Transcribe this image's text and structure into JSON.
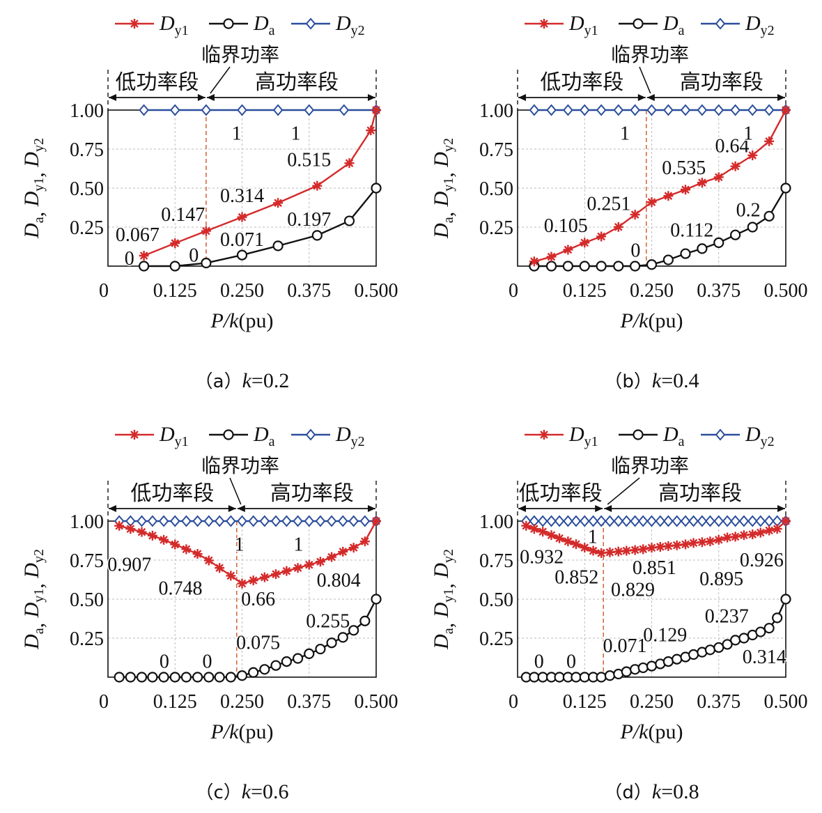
{
  "legend": [
    {
      "name": "D",
      "sub": "y1",
      "color": "#d42a2a",
      "marker": "star"
    },
    {
      "name": "D",
      "sub": "a",
      "color": "#111111",
      "marker": "circle"
    },
    {
      "name": "D",
      "sub": "y2",
      "color": "#2a4d9c",
      "marker": "diamond"
    }
  ],
  "labels": {
    "critical": "临界功率",
    "low": "低功率段",
    "high": "高功率段",
    "xlabel_italic": "P/k",
    "xlabel_unit": "(pu)",
    "ylabel_text": "D",
    "ylabel_subs": [
      "a",
      "y1",
      "y2"
    ],
    "ylabel_sep": ", "
  },
  "chart_data": [
    {
      "type": "line",
      "caption": "（a）k=0.2",
      "caption_prefix": "（a）",
      "caption_var": "k",
      "caption_value": "=0.2",
      "xlim": [
        0,
        0.5
      ],
      "ylim": [
        0,
        1
      ],
      "xticks": [
        0,
        0.125,
        0.25,
        0.375,
        0.5
      ],
      "xtick_labels": [
        "0",
        "0.125",
        "0.250",
        "0.375",
        "0.500"
      ],
      "yticks": [
        0.25,
        0.5,
        0.75,
        1.0
      ],
      "ytick_labels": [
        "0.25",
        "0.50",
        "0.75",
        "1.00"
      ],
      "grid": true,
      "critical_x": 0.183,
      "series": [
        {
          "key": "Dy1",
          "x": [
            0.067,
            0.125,
            0.183,
            0.25,
            0.317,
            0.39,
            0.45,
            0.49,
            0.5
          ],
          "y": [
            0.067,
            0.147,
            0.225,
            0.314,
            0.405,
            0.515,
            0.66,
            0.87,
            1.0
          ]
        },
        {
          "key": "Da",
          "x": [
            0.067,
            0.125,
            0.183,
            0.25,
            0.317,
            0.39,
            0.45,
            0.5
          ],
          "y": [
            0.0,
            0.0,
            0.02,
            0.071,
            0.13,
            0.197,
            0.29,
            0.5
          ]
        },
        {
          "key": "Dy2",
          "x": [
            0.067,
            0.125,
            0.183,
            0.25,
            0.317,
            0.375,
            0.44,
            0.5
          ],
          "y": [
            1,
            1,
            1,
            1,
            1,
            1,
            1,
            1
          ]
        }
      ],
      "annotations": [
        {
          "text": "0.067",
          "x": 0.055,
          "y": 0.2
        },
        {
          "text": "0.147",
          "x": 0.14,
          "y": 0.33
        },
        {
          "text": "0.314",
          "x": 0.25,
          "y": 0.45
        },
        {
          "text": "0.515",
          "x": 0.375,
          "y": 0.68
        },
        {
          "text": "0.071",
          "x": 0.25,
          "y": 0.17
        },
        {
          "text": "0.197",
          "x": 0.375,
          "y": 0.3
        },
        {
          "text": "0",
          "x": 0.04,
          "y": 0.05
        },
        {
          "text": "0",
          "x": 0.16,
          "y": 0.07
        },
        {
          "text": "1",
          "x": 0.24,
          "y": 0.85
        },
        {
          "text": "1",
          "x": 0.35,
          "y": 0.85
        }
      ]
    },
    {
      "type": "line",
      "caption": "（b）k=0.4",
      "caption_prefix": "（b）",
      "caption_var": "k",
      "caption_value": "=0.4",
      "xlim": [
        0,
        0.5
      ],
      "ylim": [
        0,
        1
      ],
      "xticks": [
        0,
        0.125,
        0.25,
        0.375,
        0.5
      ],
      "xtick_labels": [
        "0",
        "0.125",
        "0.250",
        "0.375",
        "0.500"
      ],
      "yticks": [
        0.25,
        0.5,
        0.75,
        1.0
      ],
      "ytick_labels": [
        "0.25",
        "0.50",
        "0.75",
        "1.00"
      ],
      "grid": true,
      "critical_x": 0.24,
      "series": [
        {
          "key": "Dy1",
          "x": [
            0.031,
            0.063,
            0.094,
            0.125,
            0.156,
            0.188,
            0.219,
            0.25,
            0.281,
            0.313,
            0.344,
            0.375,
            0.406,
            0.438,
            0.469,
            0.5
          ],
          "y": [
            0.03,
            0.06,
            0.105,
            0.15,
            0.19,
            0.251,
            0.33,
            0.41,
            0.45,
            0.49,
            0.535,
            0.57,
            0.64,
            0.71,
            0.8,
            1.0
          ]
        },
        {
          "key": "Da",
          "x": [
            0.031,
            0.063,
            0.094,
            0.125,
            0.156,
            0.188,
            0.219,
            0.25,
            0.281,
            0.313,
            0.344,
            0.375,
            0.406,
            0.438,
            0.469,
            0.5
          ],
          "y": [
            0,
            0,
            0,
            0,
            0,
            0,
            0,
            0.01,
            0.04,
            0.08,
            0.112,
            0.15,
            0.2,
            0.25,
            0.32,
            0.5
          ]
        },
        {
          "key": "Dy2",
          "x": [
            0.031,
            0.063,
            0.094,
            0.125,
            0.156,
            0.188,
            0.219,
            0.25,
            0.281,
            0.313,
            0.344,
            0.375,
            0.406,
            0.438,
            0.469,
            0.5
          ],
          "y": [
            1,
            1,
            1,
            1,
            1,
            1,
            1,
            1,
            1,
            1,
            1,
            1,
            1,
            1,
            1,
            1
          ]
        }
      ],
      "annotations": [
        {
          "text": "0.105",
          "x": 0.09,
          "y": 0.26
        },
        {
          "text": "0.251",
          "x": 0.17,
          "y": 0.4
        },
        {
          "text": "0.535",
          "x": 0.31,
          "y": 0.63
        },
        {
          "text": "0.64",
          "x": 0.4,
          "y": 0.77
        },
        {
          "text": "0.112",
          "x": 0.325,
          "y": 0.23
        },
        {
          "text": "0.2",
          "x": 0.43,
          "y": 0.36
        },
        {
          "text": "0",
          "x": 0.22,
          "y": 0.1
        },
        {
          "text": "1",
          "x": 0.2,
          "y": 0.85
        },
        {
          "text": "1",
          "x": 0.43,
          "y": 0.85
        }
      ]
    },
    {
      "type": "line",
      "caption": "（c）k=0.6",
      "caption_prefix": "（c）",
      "caption_var": "k",
      "caption_value": "=0.6",
      "xlim": [
        0,
        0.5
      ],
      "ylim": [
        0,
        1
      ],
      "xticks": [
        0,
        0.125,
        0.25,
        0.375,
        0.5
      ],
      "xtick_labels": [
        "0",
        "0.125",
        "0.250",
        "0.375",
        "0.500"
      ],
      "yticks": [
        0.25,
        0.5,
        0.75,
        1.0
      ],
      "ytick_labels": [
        "0.25",
        "0.50",
        "0.75",
        "1.00"
      ],
      "grid": true,
      "critical_x": 0.24,
      "series": [
        {
          "key": "Dy1",
          "x": [
            0.021,
            0.042,
            0.063,
            0.083,
            0.104,
            0.125,
            0.146,
            0.167,
            0.188,
            0.208,
            0.229,
            0.25,
            0.271,
            0.292,
            0.313,
            0.333,
            0.354,
            0.375,
            0.396,
            0.417,
            0.438,
            0.458,
            0.479,
            0.5
          ],
          "y": [
            0.97,
            0.95,
            0.93,
            0.907,
            0.88,
            0.85,
            0.82,
            0.79,
            0.748,
            0.7,
            0.65,
            0.6,
            0.62,
            0.64,
            0.66,
            0.68,
            0.7,
            0.72,
            0.74,
            0.77,
            0.804,
            0.83,
            0.87,
            1.0
          ]
        },
        {
          "key": "Da",
          "x": [
            0.021,
            0.042,
            0.063,
            0.083,
            0.104,
            0.125,
            0.146,
            0.167,
            0.188,
            0.208,
            0.229,
            0.25,
            0.271,
            0.292,
            0.313,
            0.333,
            0.354,
            0.375,
            0.396,
            0.417,
            0.438,
            0.458,
            0.479,
            0.5
          ],
          "y": [
            0,
            0,
            0,
            0,
            0,
            0,
            0,
            0,
            0,
            0,
            0,
            0.01,
            0.03,
            0.05,
            0.075,
            0.1,
            0.12,
            0.15,
            0.18,
            0.22,
            0.255,
            0.3,
            0.36,
            0.5
          ]
        },
        {
          "key": "Dy2",
          "x": [
            0.021,
            0.042,
            0.063,
            0.083,
            0.104,
            0.125,
            0.146,
            0.167,
            0.188,
            0.208,
            0.229,
            0.25,
            0.271,
            0.292,
            0.313,
            0.333,
            0.354,
            0.375,
            0.396,
            0.417,
            0.438,
            0.458,
            0.479,
            0.5
          ],
          "y": [
            1,
            1,
            1,
            1,
            1,
            1,
            1,
            1,
            1,
            1,
            1,
            1,
            1,
            1,
            1,
            1,
            1,
            1,
            1,
            1,
            1,
            1,
            1,
            1
          ]
        }
      ],
      "annotations": [
        {
          "text": "0.907",
          "x": 0.04,
          "y": 0.72
        },
        {
          "text": "0.748",
          "x": 0.135,
          "y": 0.57
        },
        {
          "text": "0.66",
          "x": 0.28,
          "y": 0.5
        },
        {
          "text": "0.804",
          "x": 0.43,
          "y": 0.62
        },
        {
          "text": "0.075",
          "x": 0.28,
          "y": 0.22
        },
        {
          "text": "0.255",
          "x": 0.41,
          "y": 0.36
        },
        {
          "text": "0",
          "x": 0.105,
          "y": 0.1
        },
        {
          "text": "0",
          "x": 0.185,
          "y": 0.1
        },
        {
          "text": "1",
          "x": 0.245,
          "y": 0.85
        },
        {
          "text": "1",
          "x": 0.355,
          "y": 0.85
        }
      ]
    },
    {
      "type": "line",
      "caption": "（d）k=0.8",
      "caption_prefix": "（d）",
      "caption_var": "k",
      "caption_value": "=0.8",
      "xlim": [
        0,
        0.5
      ],
      "ylim": [
        0,
        1
      ],
      "xticks": [
        0,
        0.125,
        0.25,
        0.375,
        0.5
      ],
      "xtick_labels": [
        "0",
        "0.125",
        "0.250",
        "0.375",
        "0.500"
      ],
      "yticks": [
        0.25,
        0.5,
        0.75,
        1.0
      ],
      "ytick_labels": [
        "0.25",
        "0.50",
        "0.75",
        "1.00"
      ],
      "grid": true,
      "critical_x": 0.16,
      "series": [
        {
          "key": "Dy1",
          "x": [
            0.016,
            0.031,
            0.047,
            0.063,
            0.078,
            0.094,
            0.109,
            0.125,
            0.141,
            0.156,
            0.172,
            0.188,
            0.203,
            0.219,
            0.234,
            0.25,
            0.266,
            0.281,
            0.297,
            0.313,
            0.328,
            0.344,
            0.359,
            0.375,
            0.391,
            0.406,
            0.422,
            0.438,
            0.453,
            0.469,
            0.484,
            0.5
          ],
          "y": [
            0.97,
            0.95,
            0.932,
            0.91,
            0.89,
            0.87,
            0.852,
            0.83,
            0.81,
            0.795,
            0.8,
            0.805,
            0.81,
            0.815,
            0.82,
            0.829,
            0.835,
            0.84,
            0.845,
            0.851,
            0.86,
            0.865,
            0.87,
            0.88,
            0.895,
            0.9,
            0.91,
            0.915,
            0.926,
            0.94,
            0.95,
            1.0
          ]
        },
        {
          "key": "Da",
          "x": [
            0.016,
            0.031,
            0.047,
            0.063,
            0.078,
            0.094,
            0.109,
            0.125,
            0.141,
            0.156,
            0.172,
            0.188,
            0.203,
            0.219,
            0.234,
            0.25,
            0.266,
            0.281,
            0.297,
            0.313,
            0.328,
            0.344,
            0.359,
            0.375,
            0.391,
            0.406,
            0.422,
            0.438,
            0.453,
            0.469,
            0.484,
            0.5
          ],
          "y": [
            0,
            0,
            0,
            0,
            0,
            0,
            0,
            0,
            0,
            0,
            0.01,
            0.02,
            0.035,
            0.05,
            0.06,
            0.071,
            0.085,
            0.1,
            0.115,
            0.129,
            0.145,
            0.16,
            0.175,
            0.19,
            0.21,
            0.237,
            0.25,
            0.27,
            0.29,
            0.314,
            0.38,
            0.5
          ]
        },
        {
          "key": "Dy2",
          "x": [
            0.016,
            0.031,
            0.047,
            0.063,
            0.078,
            0.094,
            0.109,
            0.125,
            0.141,
            0.156,
            0.172,
            0.188,
            0.203,
            0.219,
            0.234,
            0.25,
            0.266,
            0.281,
            0.297,
            0.313,
            0.328,
            0.344,
            0.359,
            0.375,
            0.391,
            0.406,
            0.422,
            0.438,
            0.453,
            0.469,
            0.484,
            0.5
          ],
          "y": [
            1,
            1,
            1,
            1,
            1,
            1,
            1,
            1,
            1,
            1,
            1,
            1,
            1,
            1,
            1,
            1,
            1,
            1,
            1,
            1,
            1,
            1,
            1,
            1,
            1,
            1,
            1,
            1,
            1,
            1,
            1,
            1
          ]
        }
      ],
      "annotations": [
        {
          "text": "0.932",
          "x": 0.045,
          "y": 0.77
        },
        {
          "text": "0.852",
          "x": 0.11,
          "y": 0.64
        },
        {
          "text": "0.829",
          "x": 0.215,
          "y": 0.56
        },
        {
          "text": "0.851",
          "x": 0.255,
          "y": 0.7
        },
        {
          "text": "0.895",
          "x": 0.38,
          "y": 0.63
        },
        {
          "text": "0.926",
          "x": 0.455,
          "y": 0.75
        },
        {
          "text": "0.071",
          "x": 0.2,
          "y": 0.2
        },
        {
          "text": "0.129",
          "x": 0.275,
          "y": 0.27
        },
        {
          "text": "0.237",
          "x": 0.39,
          "y": 0.39
        },
        {
          "text": "0.314",
          "x": 0.46,
          "y": 0.13
        },
        {
          "text": "0",
          "x": 0.04,
          "y": 0.1
        },
        {
          "text": "0",
          "x": 0.1,
          "y": 0.1
        },
        {
          "text": "1",
          "x": 0.14,
          "y": 0.9
        }
      ]
    }
  ]
}
